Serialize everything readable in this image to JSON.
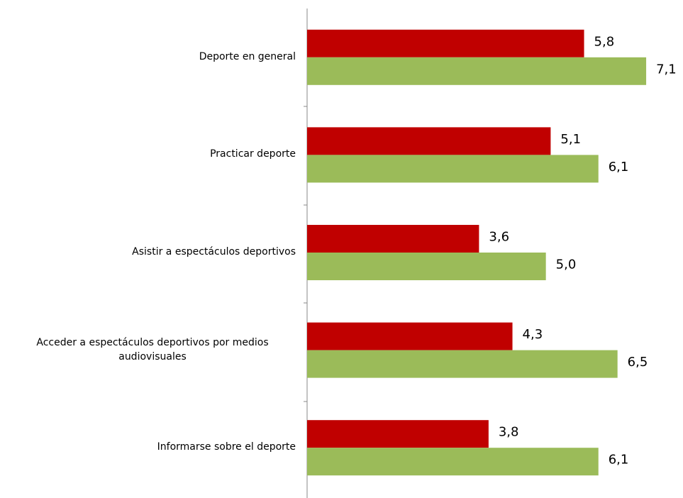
{
  "chart_data": {
    "type": "hbar",
    "categories": [
      "Deporte en general",
      "Practicar deporte",
      "Asistir a espectáculos deportivos",
      "Acceder a  espectáculos deportivos por medios audiovisuales",
      "Informarse sobre el  deporte"
    ],
    "series": [
      {
        "color": "#c00000",
        "values": [
          5.8,
          5.1,
          3.6,
          4.3,
          3.8
        ],
        "value_labels": [
          "5,8",
          "5,1",
          "3,6",
          "4,3",
          "3,8"
        ]
      },
      {
        "color": "#9bbb59",
        "values": [
          7.1,
          6.1,
          5.0,
          6.5,
          6.1
        ],
        "value_labels": [
          "7,1",
          "6,1",
          "5,0",
          "6,5",
          "6,1"
        ]
      }
    ],
    "xlim": [
      0,
      7.5
    ]
  }
}
